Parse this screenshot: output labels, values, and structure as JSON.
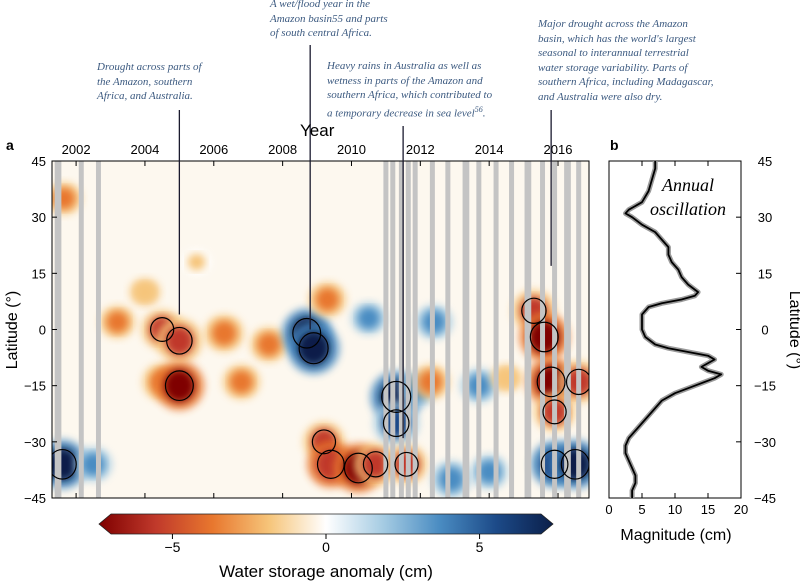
{
  "chart_data": [
    {
      "panel": "a",
      "type": "heatmap",
      "title": "",
      "xlabel": "Year",
      "ylabel": "Latitude (°)",
      "x_range": [
        2001.3,
        2016.9
      ],
      "xticks": [
        2002,
        2004,
        2006,
        2008,
        2010,
        2012,
        2014,
        2016
      ],
      "xtick_labels": [
        "2002",
        "2004",
        "2006",
        "2008",
        "2010",
        "2012",
        "2014",
        "2016"
      ],
      "ylim": [
        -45,
        45
      ],
      "yticks": [
        45,
        30,
        15,
        0,
        -15,
        -30,
        -45
      ],
      "ytick_labels": [
        "45",
        "30",
        "15",
        "0",
        "−15",
        "−30",
        "−45"
      ],
      "colorbar": {
        "label": "Water storage anomaly (cm)",
        "range": [
          -7,
          7
        ],
        "ticks": [
          -5,
          0,
          5
        ],
        "tick_labels": [
          "−5",
          "0",
          "5"
        ],
        "colors": [
          "#7f0000",
          "#c0392b",
          "#e8772e",
          "#f6c57a",
          "#ffffff",
          "#a6cce3",
          "#4a8cc2",
          "#1c4a88",
          "#0b1f4a"
        ]
      },
      "data_gaps_years": [
        2001.45,
        2001.5,
        2002.15,
        2002.65,
        2011.0,
        2011.2,
        2011.45,
        2011.65,
        2011.85,
        2012.35,
        2012.8,
        2013.3,
        2013.35,
        2013.7,
        2014.2,
        2014.65,
        2015.1,
        2015.15,
        2015.55,
        2015.9,
        2016.25,
        2016.3,
        2016.6
      ],
      "anomalies": [
        {
          "x": 2001.6,
          "lat": -36,
          "value": 6.5
        },
        {
          "x": 2001.65,
          "lat": 35,
          "value": -3
        },
        {
          "x": 2002.5,
          "lat": -36,
          "value": 3.5
        },
        {
          "x": 2003.2,
          "lat": 2,
          "value": -3
        },
        {
          "x": 2004.0,
          "lat": 10,
          "value": -2
        },
        {
          "x": 2004.5,
          "lat": 0,
          "value": -4.5
        },
        {
          "x": 2004.5,
          "lat": -14,
          "value": -4
        },
        {
          "x": 2005.0,
          "lat": -3,
          "value": -5.5
        },
        {
          "x": 2005.0,
          "lat": -15,
          "value": -6.5
        },
        {
          "x": 2005.5,
          "lat": 18,
          "value": -1.5
        },
        {
          "x": 2006.3,
          "lat": -1,
          "value": -4
        },
        {
          "x": 2006.8,
          "lat": -14,
          "value": -3.5
        },
        {
          "x": 2007.6,
          "lat": -4,
          "value": -3.5
        },
        {
          "x": 2008.7,
          "lat": -1,
          "value": 6.5
        },
        {
          "x": 2008.9,
          "lat": -5,
          "value": 7
        },
        {
          "x": 2009.3,
          "lat": 8,
          "value": -3.5
        },
        {
          "x": 2009.2,
          "lat": -30,
          "value": -4.5
        },
        {
          "x": 2009.4,
          "lat": -36,
          "value": -6
        },
        {
          "x": 2010.2,
          "lat": -37,
          "value": -6.5
        },
        {
          "x": 2010.7,
          "lat": -36,
          "value": -5
        },
        {
          "x": 2010.5,
          "lat": 3,
          "value": 3
        },
        {
          "x": 2011.3,
          "lat": -18,
          "value": 7
        },
        {
          "x": 2011.3,
          "lat": -25,
          "value": 5.5
        },
        {
          "x": 2011.6,
          "lat": -36,
          "value": -4.5
        },
        {
          "x": 2011.9,
          "lat": -16,
          "value": 3.5
        },
        {
          "x": 2012.4,
          "lat": 2,
          "value": 3.5
        },
        {
          "x": 2012.3,
          "lat": -14,
          "value": -3.5
        },
        {
          "x": 2012.9,
          "lat": -40,
          "value": 4
        },
        {
          "x": 2013.7,
          "lat": -15,
          "value": 3.5
        },
        {
          "x": 2014.0,
          "lat": -38,
          "value": 3.5
        },
        {
          "x": 2014.5,
          "lat": -13,
          "value": -2
        },
        {
          "x": 2015.3,
          "lat": 5,
          "value": -5
        },
        {
          "x": 2015.6,
          "lat": -2,
          "value": -6.5
        },
        {
          "x": 2015.8,
          "lat": -14,
          "value": -6.5
        },
        {
          "x": 2015.9,
          "lat": -22,
          "value": -4.5
        },
        {
          "x": 2015.9,
          "lat": -36,
          "value": 6
        },
        {
          "x": 2016.5,
          "lat": -36,
          "value": 6.5
        },
        {
          "x": 2016.6,
          "lat": -14,
          "value": -5
        }
      ],
      "annotations": [
        {
          "x": 2005.0,
          "text_lines": [
            "Drought across parts of",
            "the Amazon, southern",
            "Africa, and Australia."
          ]
        },
        {
          "x": 2008.8,
          "text_lines": [
            "A wet/flood year in the",
            "Amazon basin55 and parts",
            "of south central Africa."
          ]
        },
        {
          "x": 2011.5,
          "text_lines": [
            "Heavy rains in Australia as well as",
            "wetness in parts of the Amazon and",
            "southern Africa, which contributed to",
            "a temporary decrease in sea level56."
          ]
        },
        {
          "x": 2015.8,
          "text_lines": [
            "Major drought across the Amazon",
            "basin, which has the world's largest",
            "seasonal to interannual terrestrial",
            "water storage variability.  Parts of",
            "southern Africa, including Madagascar,",
            "and Australia were also dry."
          ]
        }
      ]
    },
    {
      "panel": "b",
      "type": "line",
      "title": "Annual oscillation",
      "xlabel": "Magnitude (cm)",
      "ylabel": "Latitude (°)",
      "xlim": [
        0,
        20
      ],
      "xticks": [
        0,
        5,
        10,
        15,
        20
      ],
      "ylim": [
        -45,
        45
      ],
      "yticks": [
        45,
        30,
        15,
        0,
        -15,
        -30,
        -45
      ],
      "ytick_labels": [
        "45",
        "30",
        "15",
        "0",
        "−15",
        "−30",
        "−45"
      ],
      "series": [
        {
          "name": "Annual oscillation magnitude",
          "lat": [
            45,
            43,
            40,
            37,
            34,
            32,
            31,
            30,
            28,
            26,
            24,
            22,
            20,
            18,
            16,
            14,
            12,
            10,
            9,
            8,
            7,
            6,
            4,
            2,
            0,
            -2,
            -4,
            -5,
            -6,
            -7,
            -8,
            -10,
            -11,
            -12,
            -13,
            -15,
            -17,
            -19,
            -21,
            -23,
            -25,
            -27,
            -29,
            -31,
            -33,
            -35,
            -37,
            -39,
            -41,
            -43,
            -45
          ],
          "values": [
            7,
            7,
            6.5,
            6,
            5,
            3,
            2.5,
            3.5,
            5,
            7,
            8,
            9,
            9,
            9.5,
            10.5,
            11,
            12,
            13.5,
            13,
            11,
            8,
            6,
            5,
            5,
            5,
            5.5,
            7,
            9,
            12,
            15,
            16,
            14,
            15,
            17,
            16,
            13,
            10,
            8,
            7,
            6,
            5,
            4,
            3,
            2.5,
            2.5,
            3,
            3.5,
            4,
            4,
            3.5,
            3.5
          ]
        }
      ]
    }
  ],
  "panel_labels": {
    "a": "a",
    "b": "b"
  }
}
